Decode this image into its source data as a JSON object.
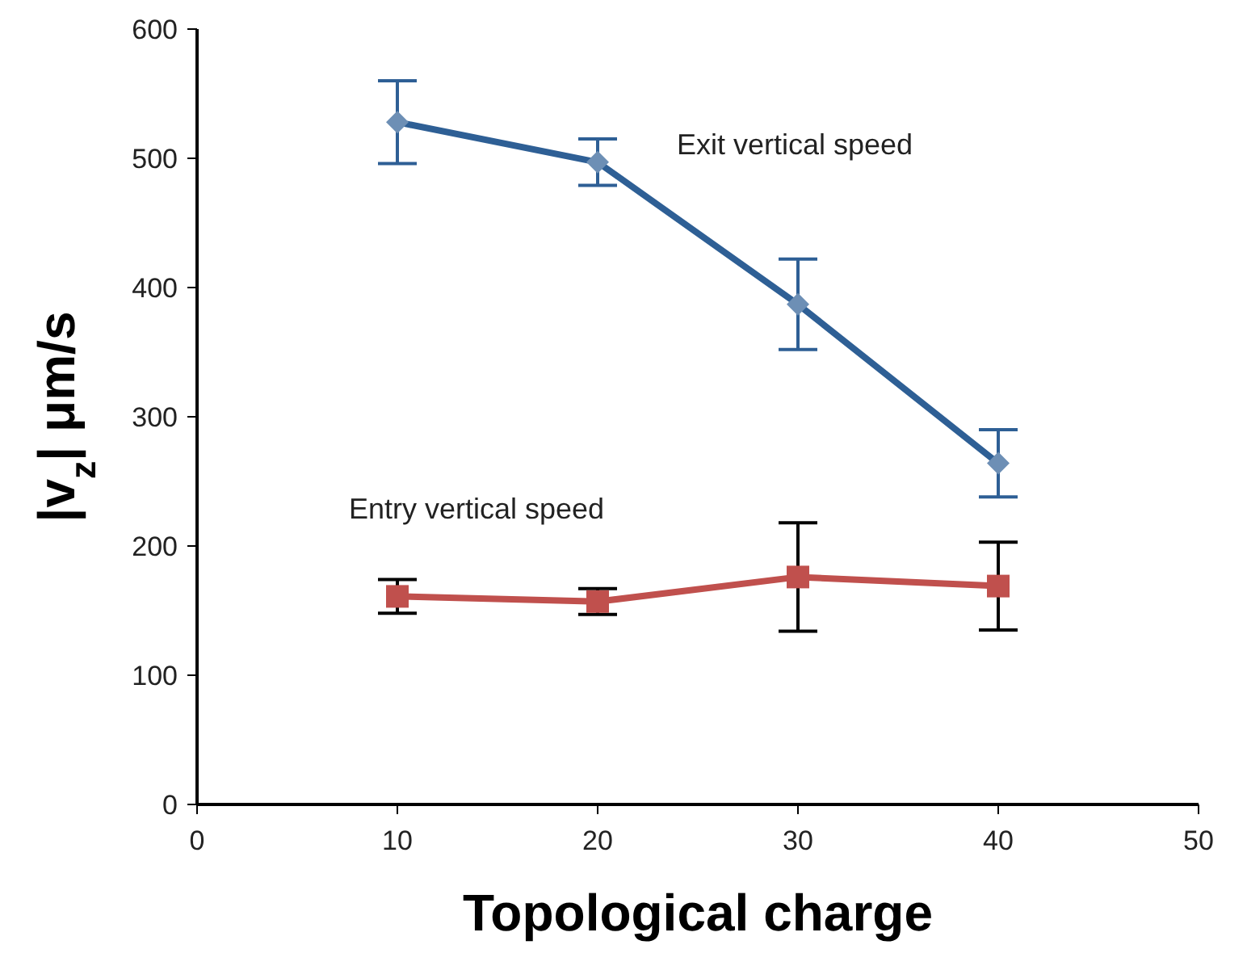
{
  "chart_data": {
    "type": "line",
    "xlabel": "Topological charge",
    "ylabel": "|v$_{z}$| μm/s",
    "x": [
      10,
      20,
      30,
      40
    ],
    "series": [
      {
        "name": "Exit vertical speed",
        "color": "#2e5f95",
        "marker": "diamond",
        "values": [
          528,
          497,
          387,
          264
        ],
        "errors": [
          32,
          18,
          35,
          26
        ]
      },
      {
        "name": "Entry vertical speed",
        "color": "#c0504d",
        "marker": "square",
        "values": [
          161,
          157,
          176,
          169
        ],
        "errors": [
          13,
          10,
          42,
          34
        ]
      }
    ],
    "xlim": [
      0,
      50
    ],
    "xticks": [
      0,
      10,
      20,
      30,
      40,
      50
    ],
    "ylim": [
      0,
      600
    ],
    "yticks": [
      0,
      100,
      200,
      300,
      400,
      500,
      600
    ],
    "grid": false,
    "legend": false
  }
}
